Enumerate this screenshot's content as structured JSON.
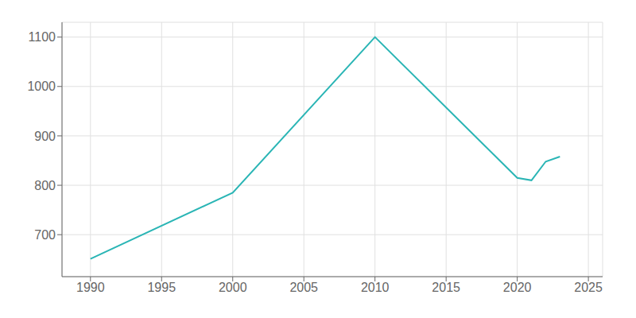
{
  "chart_data": {
    "type": "line",
    "x": [
      1990,
      2000,
      2010,
      2020,
      2021,
      2022,
      2023
    ],
    "values": [
      651,
      785,
      1100,
      815,
      810,
      848,
      858
    ],
    "color": "#2ab5b5",
    "xlim": [
      1988,
      2026
    ],
    "ylim": [
      615,
      1130
    ],
    "xticks": [
      1990,
      1995,
      2000,
      2005,
      2010,
      2015,
      2020,
      2025
    ],
    "yticks": [
      700,
      800,
      900,
      1000,
      1100
    ],
    "grid": true
  }
}
